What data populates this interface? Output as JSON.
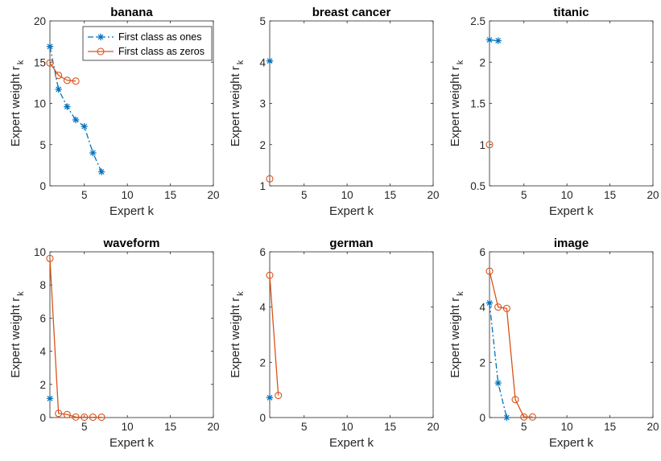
{
  "figure": {
    "colors": {
      "ones": "#0072BD",
      "zeros": "#D95319"
    }
  },
  "legend": {
    "entries": [
      "First class as ones",
      "First class as zeros"
    ],
    "placement": "top-right of first subplot"
  },
  "chart_data": [
    {
      "type": "line",
      "title": "banana",
      "xlabel": "Expert k",
      "ylabel": "Expert weight r",
      "ylabel_sub": "k",
      "xlim": [
        1,
        20
      ],
      "ylim": [
        0,
        20
      ],
      "xticks": [
        5,
        10,
        15,
        20
      ],
      "yticks": [
        0,
        5,
        10,
        15,
        20
      ],
      "xtick_labels": [
        "5",
        "10",
        "15",
        "20"
      ],
      "ytick_labels": [
        "0",
        "5",
        "10",
        "15",
        "20"
      ],
      "series": [
        {
          "name": "First class as ones",
          "x": [
            1,
            2,
            3,
            4,
            5,
            6,
            7
          ],
          "y": [
            16.9,
            11.7,
            9.6,
            8.0,
            7.2,
            4.0,
            1.7
          ]
        },
        {
          "name": "First class as zeros",
          "x": [
            1,
            2,
            3,
            4
          ],
          "y": [
            14.9,
            13.4,
            12.8,
            12.7
          ]
        }
      ]
    },
    {
      "type": "line",
      "title": "breast cancer",
      "xlabel": "Expert k",
      "ylabel": "Expert weight r",
      "ylabel_sub": "k",
      "xlim": [
        1,
        20
      ],
      "ylim": [
        1,
        5
      ],
      "xticks": [
        5,
        10,
        15,
        20
      ],
      "yticks": [
        1,
        2,
        3,
        4,
        5
      ],
      "xtick_labels": [
        "5",
        "10",
        "15",
        "20"
      ],
      "ytick_labels": [
        "1",
        "2",
        "3",
        "4",
        "5"
      ],
      "series": [
        {
          "name": "First class as ones",
          "x": [
            1
          ],
          "y": [
            4.03
          ]
        },
        {
          "name": "First class as zeros",
          "x": [
            1
          ],
          "y": [
            1.17
          ]
        }
      ]
    },
    {
      "type": "line",
      "title": "titanic",
      "xlabel": "Expert k",
      "ylabel": "Expert weight r",
      "ylabel_sub": "k",
      "xlim": [
        1,
        20
      ],
      "ylim": [
        0.5,
        2.5
      ],
      "xticks": [
        5,
        10,
        15,
        20
      ],
      "yticks": [
        0.5,
        1,
        1.5,
        2,
        2.5
      ],
      "xtick_labels": [
        "5",
        "10",
        "15",
        "20"
      ],
      "ytick_labels": [
        "0.5",
        "1",
        "1.5",
        "2",
        "2.5"
      ],
      "series": [
        {
          "name": "First class as ones",
          "x": [
            1,
            2
          ],
          "y": [
            2.27,
            2.26
          ]
        },
        {
          "name": "First class as zeros",
          "x": [
            1
          ],
          "y": [
            1.0
          ]
        }
      ]
    },
    {
      "type": "line",
      "title": "waveform",
      "xlabel": "Expert k",
      "ylabel": "Expert weight r",
      "ylabel_sub": "k",
      "xlim": [
        1,
        20
      ],
      "ylim": [
        0,
        10
      ],
      "xticks": [
        5,
        10,
        15,
        20
      ],
      "yticks": [
        0,
        2,
        4,
        6,
        8,
        10
      ],
      "xtick_labels": [
        "5",
        "10",
        "15",
        "20"
      ],
      "ytick_labels": [
        "0",
        "2",
        "4",
        "6",
        "8",
        "10"
      ],
      "series": [
        {
          "name": "First class as ones",
          "x": [
            1
          ],
          "y": [
            1.15
          ]
        },
        {
          "name": "First class as zeros",
          "x": [
            1,
            2,
            3,
            4,
            5,
            6,
            7
          ],
          "y": [
            9.6,
            0.25,
            0.18,
            0.03,
            0.02,
            0.02,
            0.02
          ]
        }
      ]
    },
    {
      "type": "line",
      "title": "german",
      "xlabel": "Expert k",
      "ylabel": "Expert weight r",
      "ylabel_sub": "k",
      "xlim": [
        1,
        20
      ],
      "ylim": [
        0,
        6
      ],
      "xticks": [
        5,
        10,
        15,
        20
      ],
      "yticks": [
        0,
        2,
        4,
        6
      ],
      "xtick_labels": [
        "5",
        "10",
        "15",
        "20"
      ],
      "ytick_labels": [
        "0",
        "2",
        "4",
        "6"
      ],
      "series": [
        {
          "name": "First class as ones",
          "x": [
            1
          ],
          "y": [
            0.72
          ]
        },
        {
          "name": "First class as zeros",
          "x": [
            1,
            2
          ],
          "y": [
            5.15,
            0.8
          ]
        }
      ]
    },
    {
      "type": "line",
      "title": "image",
      "xlabel": "Expert k",
      "ylabel": "Expert weight r",
      "ylabel_sub": "k",
      "xlim": [
        1,
        20
      ],
      "ylim": [
        0,
        6
      ],
      "xticks": [
        5,
        10,
        15,
        20
      ],
      "yticks": [
        0,
        2,
        4,
        6
      ],
      "xtick_labels": [
        "5",
        "10",
        "15",
        "20"
      ],
      "ytick_labels": [
        "0",
        "2",
        "4",
        "6"
      ],
      "series": [
        {
          "name": "First class as ones",
          "x": [
            1,
            2,
            3
          ],
          "y": [
            4.15,
            1.25,
            0.0
          ]
        },
        {
          "name": "First class as zeros",
          "x": [
            1,
            2,
            3,
            4,
            5,
            6
          ],
          "y": [
            5.3,
            4.0,
            3.95,
            0.65,
            0.02,
            0.02
          ]
        }
      ]
    }
  ]
}
